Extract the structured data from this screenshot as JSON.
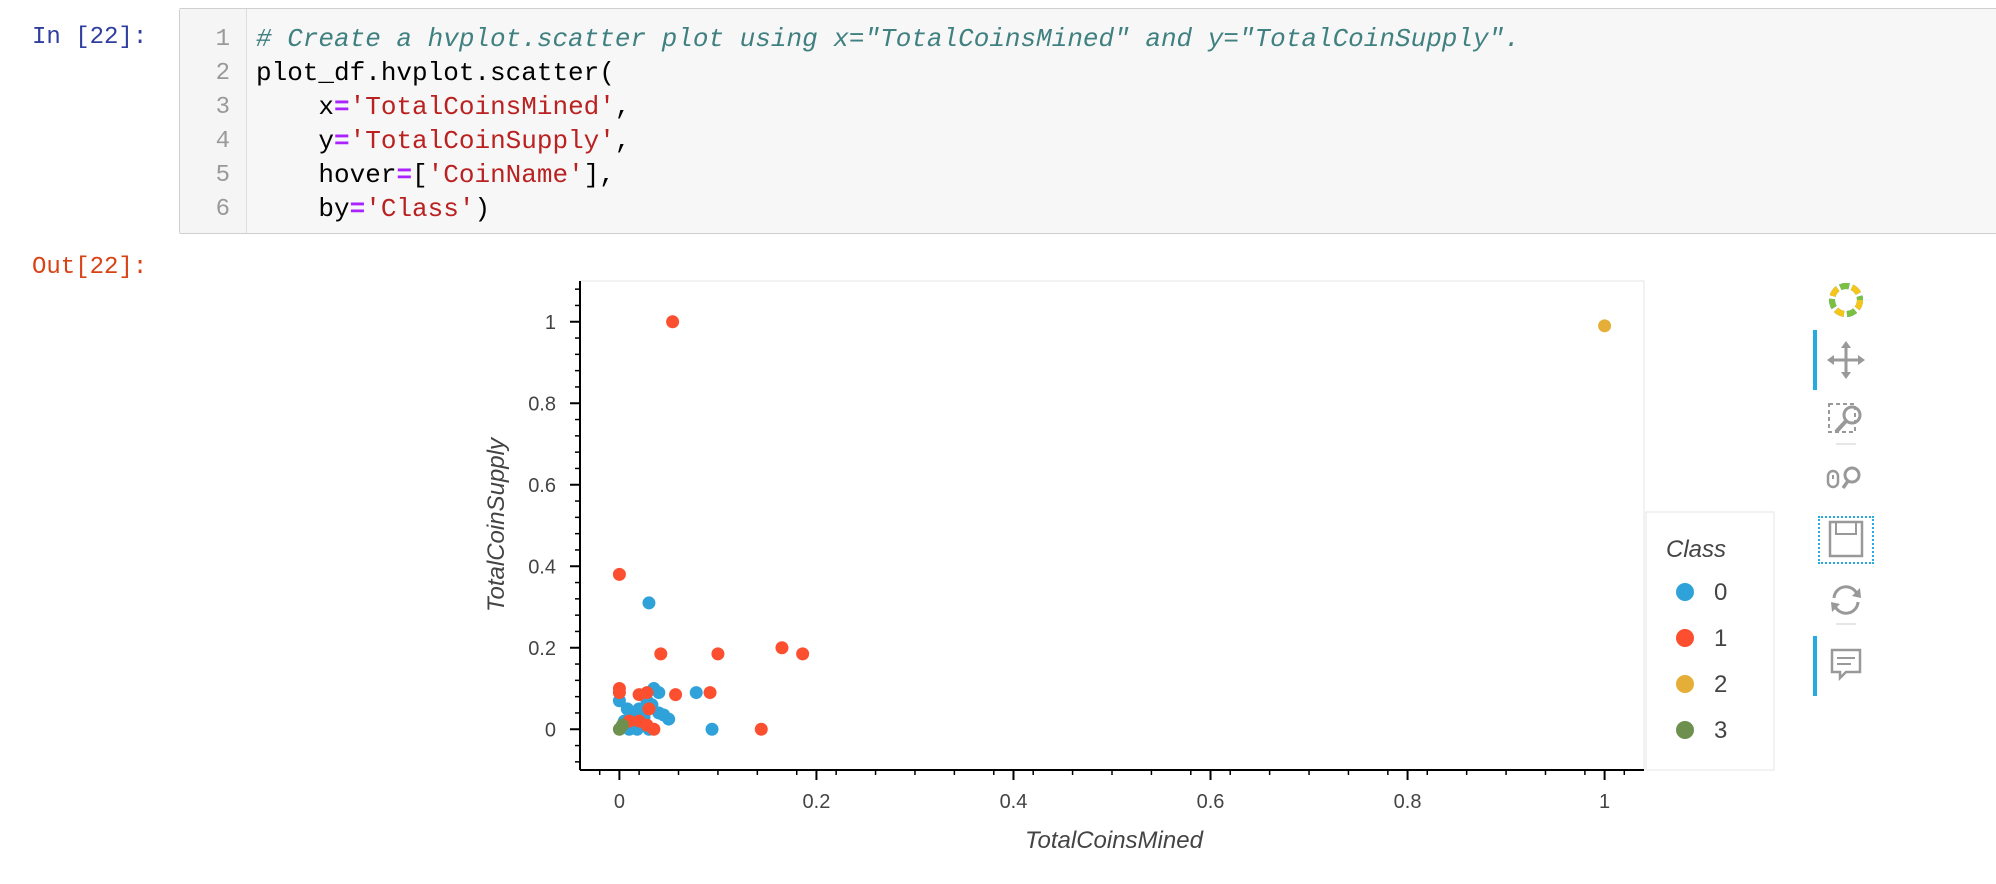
{
  "notebook": {
    "in_prompt": "In [22]:",
    "out_prompt": "Out[22]:",
    "code": {
      "line_numbers": [
        "1",
        "2",
        "3",
        "4",
        "5",
        "6"
      ],
      "line1": {
        "comment": "# Create a hvplot.scatter plot using x=\"TotalCoinsMined\" and y=\"TotalCoinSupply\"."
      },
      "line2": {
        "text": "plot_df.hvplot.scatter("
      },
      "line3": {
        "indent": "    ",
        "kw": "x",
        "eq": "=",
        "str": "'TotalCoinsMined'",
        "tail": ","
      },
      "line4": {
        "indent": "    ",
        "kw": "y",
        "eq": "=",
        "str": "'TotalCoinSupply'",
        "tail": ","
      },
      "line5": {
        "indent": "    ",
        "kw": "hover",
        "eq": "=",
        "pre": "[",
        "str": "'CoinName'",
        "tail": "],"
      },
      "line6": {
        "indent": "    ",
        "kw": "by",
        "eq": "=",
        "str": "'Class'",
        "tail": ")"
      }
    }
  },
  "toolbar": {
    "items": [
      "bokeh-logo-icon",
      "pan-icon",
      "box-zoom-icon",
      "wheel-zoom-icon",
      "save-icon",
      "reset-icon",
      "hover-icon"
    ]
  },
  "chart_data": {
    "type": "scatter",
    "xlabel": "TotalCoinsMined",
    "ylabel": "TotalCoinSupply",
    "xlim": [
      -0.04,
      1.04
    ],
    "ylim": [
      -0.1,
      1.1
    ],
    "x_ticks": [
      0,
      0.2,
      0.4,
      0.6,
      0.8,
      1
    ],
    "x_tick_labels": [
      "0",
      "0.2",
      "0.4",
      "0.6",
      "0.8",
      "1"
    ],
    "y_ticks": [
      0,
      0.2,
      0.4,
      0.6,
      0.8,
      1
    ],
    "y_tick_labels": [
      "0",
      "0.2",
      "0.4",
      "0.6",
      "0.8",
      "1"
    ],
    "grid": false,
    "legend_title": "Class",
    "legend_position": "right",
    "series": [
      {
        "name": "0",
        "color": "#30a2da",
        "points": [
          [
            0.03,
            0.31
          ],
          [
            0.0,
            0.07
          ],
          [
            0.008,
            0.05
          ],
          [
            0.012,
            0.04
          ],
          [
            0.02,
            0.05
          ],
          [
            0.028,
            0.07
          ],
          [
            0.035,
            0.1
          ],
          [
            0.04,
            0.09
          ],
          [
            0.033,
            0.06
          ],
          [
            0.025,
            0.03
          ],
          [
            0.04,
            0.04
          ],
          [
            0.05,
            0.025
          ],
          [
            0.078,
            0.09
          ],
          [
            0.094,
            0.0
          ],
          [
            0.01,
            0.0
          ],
          [
            0.018,
            0.0
          ],
          [
            0.005,
            0.02
          ],
          [
            0.015,
            0.01
          ],
          [
            0.03,
            0.0
          ],
          [
            0.022,
            0.025
          ],
          [
            0.045,
            0.035
          ],
          [
            0.002,
            0.005
          ]
        ]
      },
      {
        "name": "1",
        "color": "#fc4f30",
        "points": [
          [
            0.054,
            1.0
          ],
          [
            0.0,
            0.38
          ],
          [
            0.0,
            0.1
          ],
          [
            0.0,
            0.09
          ],
          [
            0.02,
            0.085
          ],
          [
            0.028,
            0.09
          ],
          [
            0.03,
            0.05
          ],
          [
            0.042,
            0.185
          ],
          [
            0.057,
            0.085
          ],
          [
            0.092,
            0.09
          ],
          [
            0.1,
            0.185
          ],
          [
            0.165,
            0.2
          ],
          [
            0.186,
            0.185
          ],
          [
            0.144,
            0.0
          ],
          [
            0.035,
            0.0
          ],
          [
            0.01,
            0.02
          ],
          [
            0.02,
            0.02
          ],
          [
            0.028,
            0.01
          ]
        ]
      },
      {
        "name": "2",
        "color": "#e5ae38",
        "points": [
          [
            1.0,
            0.99
          ]
        ]
      },
      {
        "name": "3",
        "color": "#6d904f",
        "points": [
          [
            0.0,
            0.0
          ],
          [
            0.003,
            0.01
          ]
        ]
      }
    ]
  }
}
